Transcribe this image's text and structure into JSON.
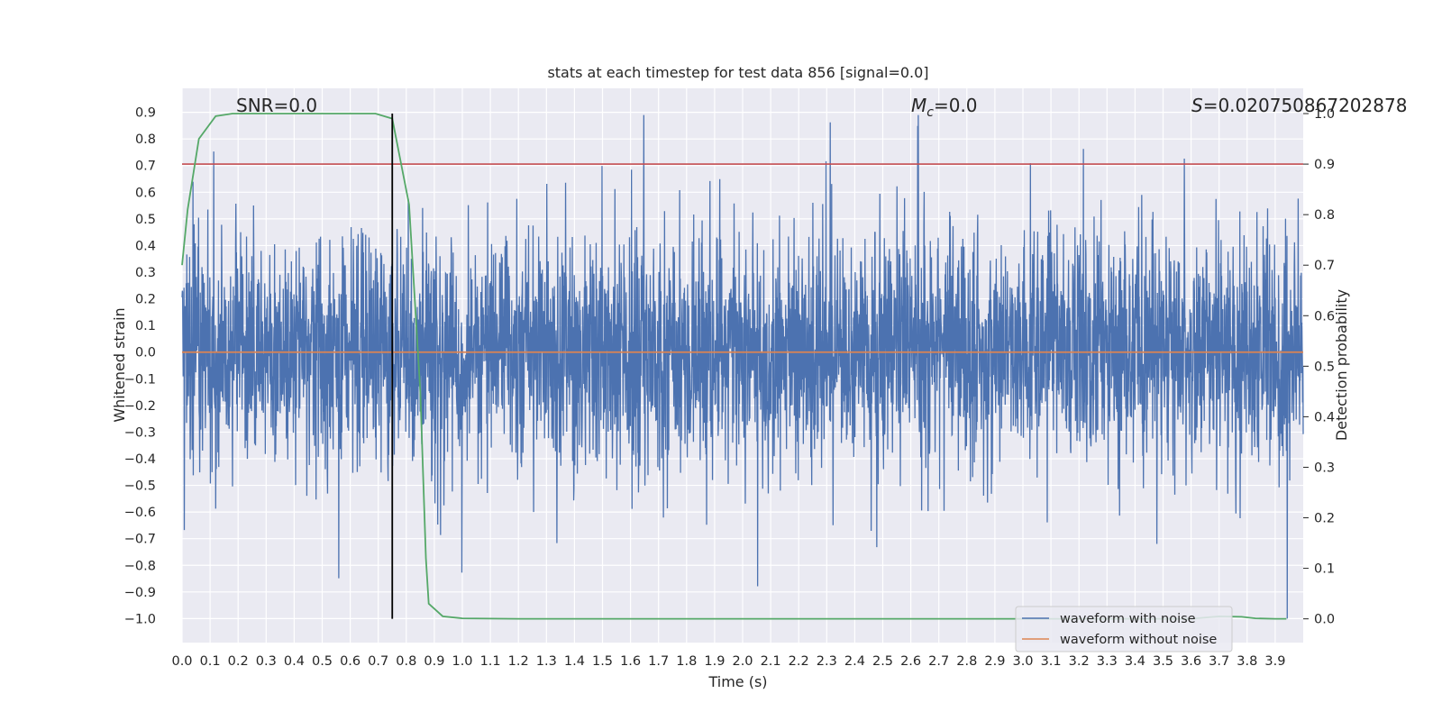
{
  "chart_data": {
    "type": "line",
    "title": "stats at each timestep for test data 856 [signal=0.0]",
    "xlabel": "Time (s)",
    "ylabel": "Whitened strain",
    "y2label": "Detection probability",
    "xlim": [
      0.0,
      4.0
    ],
    "ylim": [
      -1.09,
      0.99
    ],
    "y2lim": [
      -0.047,
      1.05
    ],
    "x_ticks": [
      "0.0",
      "0.1",
      "0.2",
      "0.3",
      "0.4",
      "0.5",
      "0.6",
      "0.7",
      "0.8",
      "0.9",
      "1.0",
      "1.1",
      "1.2",
      "1.3",
      "1.4",
      "1.5",
      "1.6",
      "1.7",
      "1.8",
      "1.9",
      "2.0",
      "2.1",
      "2.2",
      "2.3",
      "2.4",
      "2.5",
      "2.6",
      "2.7",
      "2.8",
      "2.9",
      "3.0",
      "3.1",
      "3.2",
      "3.3",
      "3.4",
      "3.5",
      "3.6",
      "3.7",
      "3.8",
      "3.9"
    ],
    "y_ticks": [
      "0.9",
      "0.8",
      "0.7",
      "0.6",
      "0.5",
      "0.4",
      "0.3",
      "0.2",
      "0.1",
      "0.0",
      "−0.1",
      "−0.2",
      "−0.3",
      "−0.4",
      "−0.5",
      "−0.6",
      "−0.7",
      "−0.8",
      "−0.9",
      "−1.0"
    ],
    "y2_ticks": [
      "1.0",
      "0.9",
      "0.8",
      "0.7",
      "0.6",
      "0.5",
      "0.4",
      "0.3",
      "0.2",
      "0.1",
      "0.0"
    ],
    "grid": true,
    "legend_position": "lower right",
    "annotations": {
      "snr": "SNR=0.0",
      "mc_symbol": "M",
      "mc_sub": "c",
      "mc_value": "=0.0",
      "s_symbol": "S",
      "s_value": "=0.020750867202878"
    },
    "threshold_y2": 0.9,
    "marker_x": 0.75,
    "series": [
      {
        "name": "waveform with noise",
        "color": "#4c72b0",
        "description_stats": {
          "x_start": 0.0,
          "x_end": 4.0,
          "typical_abs": 0.3,
          "max": 0.89,
          "min": -1.0
        }
      },
      {
        "name": "waveform without noise",
        "color": "#dd8452",
        "constant_value": 0.0
      },
      {
        "color": "#55a868",
        "axis": "y2",
        "x": [
          0.0,
          0.02,
          0.06,
          0.12,
          0.18,
          0.25,
          0.35,
          0.45,
          0.55,
          0.65,
          0.69,
          0.75,
          0.81,
          0.85,
          0.87,
          0.88,
          0.93,
          1.0,
          1.2,
          1.4,
          1.6,
          2.0,
          2.4,
          2.8,
          3.2,
          3.6,
          3.7,
          3.78,
          3.83,
          3.9,
          3.94
        ],
        "values": [
          0.7,
          0.81,
          0.95,
          0.995,
          1.0,
          1.0,
          1.0,
          1.0,
          1.0,
          1.0,
          1.0,
          0.99,
          0.82,
          0.45,
          0.12,
          0.03,
          0.005,
          0.001,
          0.0,
          0.0,
          0.0,
          0.0,
          0.0,
          0.0,
          0.0,
          0.0,
          0.005,
          0.004,
          0.001,
          0.0,
          0.0
        ]
      }
    ],
    "colors": {
      "plot_bg": "#eaeaf2",
      "grid": "#ffffff",
      "threshold": "#c44e52",
      "marker": "#000000"
    }
  }
}
